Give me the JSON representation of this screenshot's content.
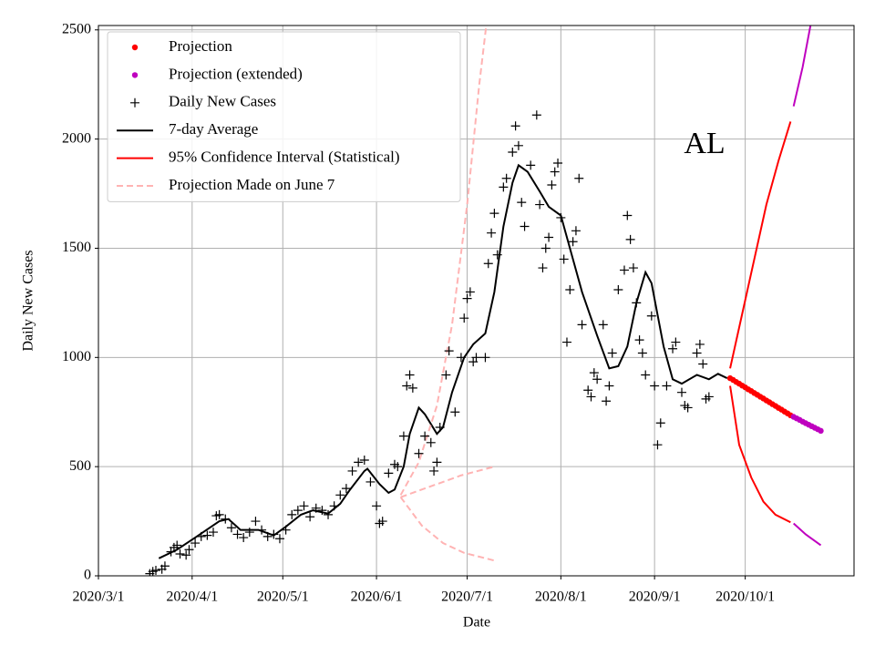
{
  "chart_data": {
    "type": "line",
    "xlabel": "Date",
    "ylabel": "Daily New Cases",
    "annotation": "AL",
    "xlim": [
      "2020/3/1",
      "2020/11/6"
    ],
    "xticks": [
      "2020/3/1",
      "2020/4/1",
      "2020/5/1",
      "2020/6/1",
      "2020/7/1",
      "2020/8/1",
      "2020/9/1",
      "2020/10/1"
    ],
    "ylim": [
      0,
      2520
    ],
    "yticks": [
      0,
      500,
      1000,
      1500,
      2000,
      2500
    ],
    "grid": true,
    "legend": "upper left",
    "series": [
      {
        "name": "Projection",
        "color": "#ff0000",
        "style": "dots",
        "x": [
          "2020/9/26",
          "2020/9/27",
          "2020/9/28",
          "2020/9/29",
          "2020/9/30",
          "2020/10/1",
          "2020/10/2",
          "2020/10/3",
          "2020/10/4",
          "2020/10/5",
          "2020/10/6",
          "2020/10/7",
          "2020/10/8",
          "2020/10/9",
          "2020/10/10",
          "2020/10/11",
          "2020/10/12",
          "2020/10/13",
          "2020/10/14",
          "2020/10/15",
          "2020/10/16"
        ],
        "values": [
          905,
          897,
          888,
          880,
          871,
          863,
          854,
          846,
          837,
          829,
          820,
          812,
          803,
          795,
          786,
          778,
          769,
          761,
          752,
          744,
          735
        ]
      },
      {
        "name": "Projection (extended)",
        "color": "#bf00bf",
        "style": "dots",
        "x": [
          "2020/10/17",
          "2020/10/18",
          "2020/10/19",
          "2020/10/20",
          "2020/10/21",
          "2020/10/22",
          "2020/10/23",
          "2020/10/24",
          "2020/10/25",
          "2020/10/26"
        ],
        "values": [
          728,
          721,
          714,
          706,
          699,
          692,
          685,
          678,
          671,
          664
        ]
      },
      {
        "name": "Daily New Cases",
        "color": "#000000",
        "style": "plus",
        "x": [
          "2020/3/18",
          "2020/3/19",
          "2020/3/20",
          "2020/3/22",
          "2020/3/23",
          "2020/3/25",
          "2020/3/26",
          "2020/3/27",
          "2020/3/28",
          "2020/3/30",
          "2020/3/31",
          "2020/4/2",
          "2020/4/4",
          "2020/4/6",
          "2020/4/8",
          "2020/4/9",
          "2020/4/10",
          "2020/4/12",
          "2020/4/14",
          "2020/4/16",
          "2020/4/18",
          "2020/4/20",
          "2020/4/22",
          "2020/4/24",
          "2020/4/26",
          "2020/4/28",
          "2020/4/30",
          "2020/5/2",
          "2020/5/4",
          "2020/5/6",
          "2020/5/8",
          "2020/5/10",
          "2020/5/12",
          "2020/5/14",
          "2020/5/16",
          "2020/5/18",
          "2020/5/20",
          "2020/5/22",
          "2020/5/24",
          "2020/5/26",
          "2020/5/28",
          "2020/5/30",
          "2020/6/1",
          "2020/6/2",
          "2020/6/3",
          "2020/6/5",
          "2020/6/7",
          "2020/6/8",
          "2020/6/10",
          "2020/6/11",
          "2020/6/12",
          "2020/6/13",
          "2020/6/15",
          "2020/6/17",
          "2020/6/19",
          "2020/6/20",
          "2020/6/21",
          "2020/6/22",
          "2020/6/24",
          "2020/6/25",
          "2020/6/27",
          "2020/6/29",
          "2020/6/30",
          "2020/7/1",
          "2020/7/2",
          "2020/7/3",
          "2020/7/4",
          "2020/7/7",
          "2020/7/8",
          "2020/7/9",
          "2020/7/10",
          "2020/7/11",
          "2020/7/13",
          "2020/7/14",
          "2020/7/16",
          "2020/7/17",
          "2020/7/18",
          "2020/7/19",
          "2020/7/20",
          "2020/7/22",
          "2020/7/24",
          "2020/7/25",
          "2020/7/26",
          "2020/7/27",
          "2020/7/28",
          "2020/7/29",
          "2020/7/30",
          "2020/7/31",
          "2020/8/1",
          "2020/8/2",
          "2020/8/3",
          "2020/8/4",
          "2020/8/5",
          "2020/8/6",
          "2020/8/7",
          "2020/8/8",
          "2020/8/10",
          "2020/8/11",
          "2020/8/12",
          "2020/8/13",
          "2020/8/15",
          "2020/8/16",
          "2020/8/17",
          "2020/8/18",
          "2020/8/20",
          "2020/8/22",
          "2020/8/23",
          "2020/8/24",
          "2020/8/25",
          "2020/8/26",
          "2020/8/27",
          "2020/8/28",
          "2020/8/29",
          "2020/8/31",
          "2020/9/1",
          "2020/9/2",
          "2020/9/3",
          "2020/9/5",
          "2020/9/7",
          "2020/9/8",
          "2020/9/10",
          "2020/9/11",
          "2020/9/12",
          "2020/9/15",
          "2020/9/16",
          "2020/9/17",
          "2020/9/18",
          "2020/9/19"
        ],
        "values": [
          10,
          20,
          25,
          30,
          45,
          110,
          130,
          140,
          100,
          95,
          120,
          150,
          180,
          185,
          200,
          275,
          280,
          260,
          220,
          190,
          175,
          200,
          250,
          210,
          180,
          190,
          170,
          210,
          280,
          300,
          320,
          270,
          310,
          300,
          280,
          320,
          370,
          400,
          480,
          520,
          530,
          430,
          320,
          240,
          250,
          470,
          510,
          500,
          640,
          870,
          920,
          860,
          560,
          640,
          610,
          480,
          520,
          680,
          920,
          1030,
          750,
          1000,
          1180,
          1270,
          1300,
          980,
          1000,
          1000,
          1430,
          1570,
          1660,
          1470,
          1780,
          1820,
          1940,
          2060,
          1970,
          1710,
          1600,
          1880,
          2110,
          1700,
          1410,
          1500,
          1550,
          1790,
          1850,
          1890,
          1640,
          1450,
          1070,
          1310,
          1530,
          1580,
          1820,
          1150,
          850,
          820,
          930,
          900,
          1150,
          800,
          870,
          1020,
          1310,
          1400,
          1650,
          1540,
          1410,
          1250,
          1080,
          1020,
          920,
          1190,
          870,
          600,
          700,
          870,
          1040,
          1070,
          840,
          780,
          770,
          1020,
          1060,
          970,
          810,
          820
        ]
      },
      {
        "name": "7-day Average",
        "color": "#000000",
        "style": "line",
        "x": [
          "2020/3/21",
          "2020/3/27",
          "2020/4/2",
          "2020/4/10",
          "2020/4/13",
          "2020/4/17",
          "2020/4/23",
          "2020/4/28",
          "2020/5/2",
          "2020/5/7",
          "2020/5/11",
          "2020/5/16",
          "2020/5/20",
          "2020/5/23",
          "2020/5/28",
          "2020/5/29",
          "2020/6/2",
          "2020/6/5",
          "2020/6/7",
          "2020/6/10",
          "2020/6/12",
          "2020/6/15",
          "2020/6/17",
          "2020/6/21",
          "2020/6/23",
          "2020/6/26",
          "2020/6/30",
          "2020/7/3",
          "2020/7/7",
          "2020/7/10",
          "2020/7/13",
          "2020/7/16",
          "2020/7/18",
          "2020/7/21",
          "2020/7/25",
          "2020/7/28",
          "2020/8/1",
          "2020/8/4",
          "2020/8/8",
          "2020/8/13",
          "2020/8/17",
          "2020/8/20",
          "2020/8/23",
          "2020/8/26",
          "2020/8/29",
          "2020/8/31",
          "2020/9/4",
          "2020/9/7",
          "2020/9/10",
          "2020/9/15",
          "2020/9/19",
          "2020/9/22",
          "2020/9/25"
        ],
        "values": [
          80,
          120,
          175,
          250,
          260,
          210,
          210,
          185,
          225,
          280,
          300,
          285,
          330,
          390,
          480,
          490,
          420,
          380,
          395,
          500,
          650,
          770,
          740,
          650,
          680,
          840,
          1000,
          1060,
          1110,
          1300,
          1600,
          1800,
          1880,
          1850,
          1760,
          1690,
          1650,
          1500,
          1300,
          1100,
          950,
          960,
          1050,
          1250,
          1390,
          1340,
          1050,
          900,
          880,
          920,
          900,
          925,
          905
        ]
      },
      {
        "name": "95% Confidence Interval (Statistical)",
        "color": "#ff0000",
        "style": "line",
        "x": [
          "2020/9/26",
          "2020/9/30",
          "2020/10/4",
          "2020/10/8",
          "2020/10/12",
          "2020/10/16"
        ],
        "values": [
          950,
          1200,
          1450,
          1700,
          1900,
          2080
        ]
      },
      {
        "name": "Projection Made on June 7",
        "color": "#ffb3b3",
        "style": "line",
        "dash": true,
        "x": [
          "2020/6/9",
          "2020/6/15",
          "2020/6/21",
          "2020/6/26",
          "2020/7/1",
          "2020/7/5",
          "2020/7/8"
        ],
        "values": [
          370,
          520,
          780,
          1150,
          1700,
          2250,
          2600
        ]
      },
      {
        "color": "#ff0000",
        "style": "line",
        "x": [
          "2020/9/26",
          "2020/9/29",
          "2020/10/3",
          "2020/10/7",
          "2020/10/11",
          "2020/10/16"
        ],
        "values": [
          870,
          600,
          450,
          340,
          280,
          245
        ]
      },
      {
        "color": "#bf00bf",
        "style": "line",
        "x": [
          "2020/10/17",
          "2020/10/20",
          "2020/10/23"
        ],
        "values": [
          2150,
          2330,
          2550
        ]
      },
      {
        "color": "#bf00bf",
        "style": "line",
        "x": [
          "2020/10/17",
          "2020/10/21",
          "2020/10/26"
        ],
        "values": [
          240,
          190,
          140
        ]
      },
      {
        "color": "#ffb3b3",
        "style": "line",
        "dash": true,
        "x": [
          "2020/6/9",
          "2020/6/19",
          "2020/6/29",
          "2020/7/10"
        ],
        "values": [
          360,
          410,
          460,
          500
        ]
      },
      {
        "color": "#ffb3b3",
        "style": "line",
        "dash": true,
        "x": [
          "2020/6/9",
          "2020/6/16",
          "2020/6/23",
          "2020/6/30",
          "2020/7/10"
        ],
        "values": [
          360,
          230,
          150,
          105,
          70
        ]
      }
    ]
  }
}
